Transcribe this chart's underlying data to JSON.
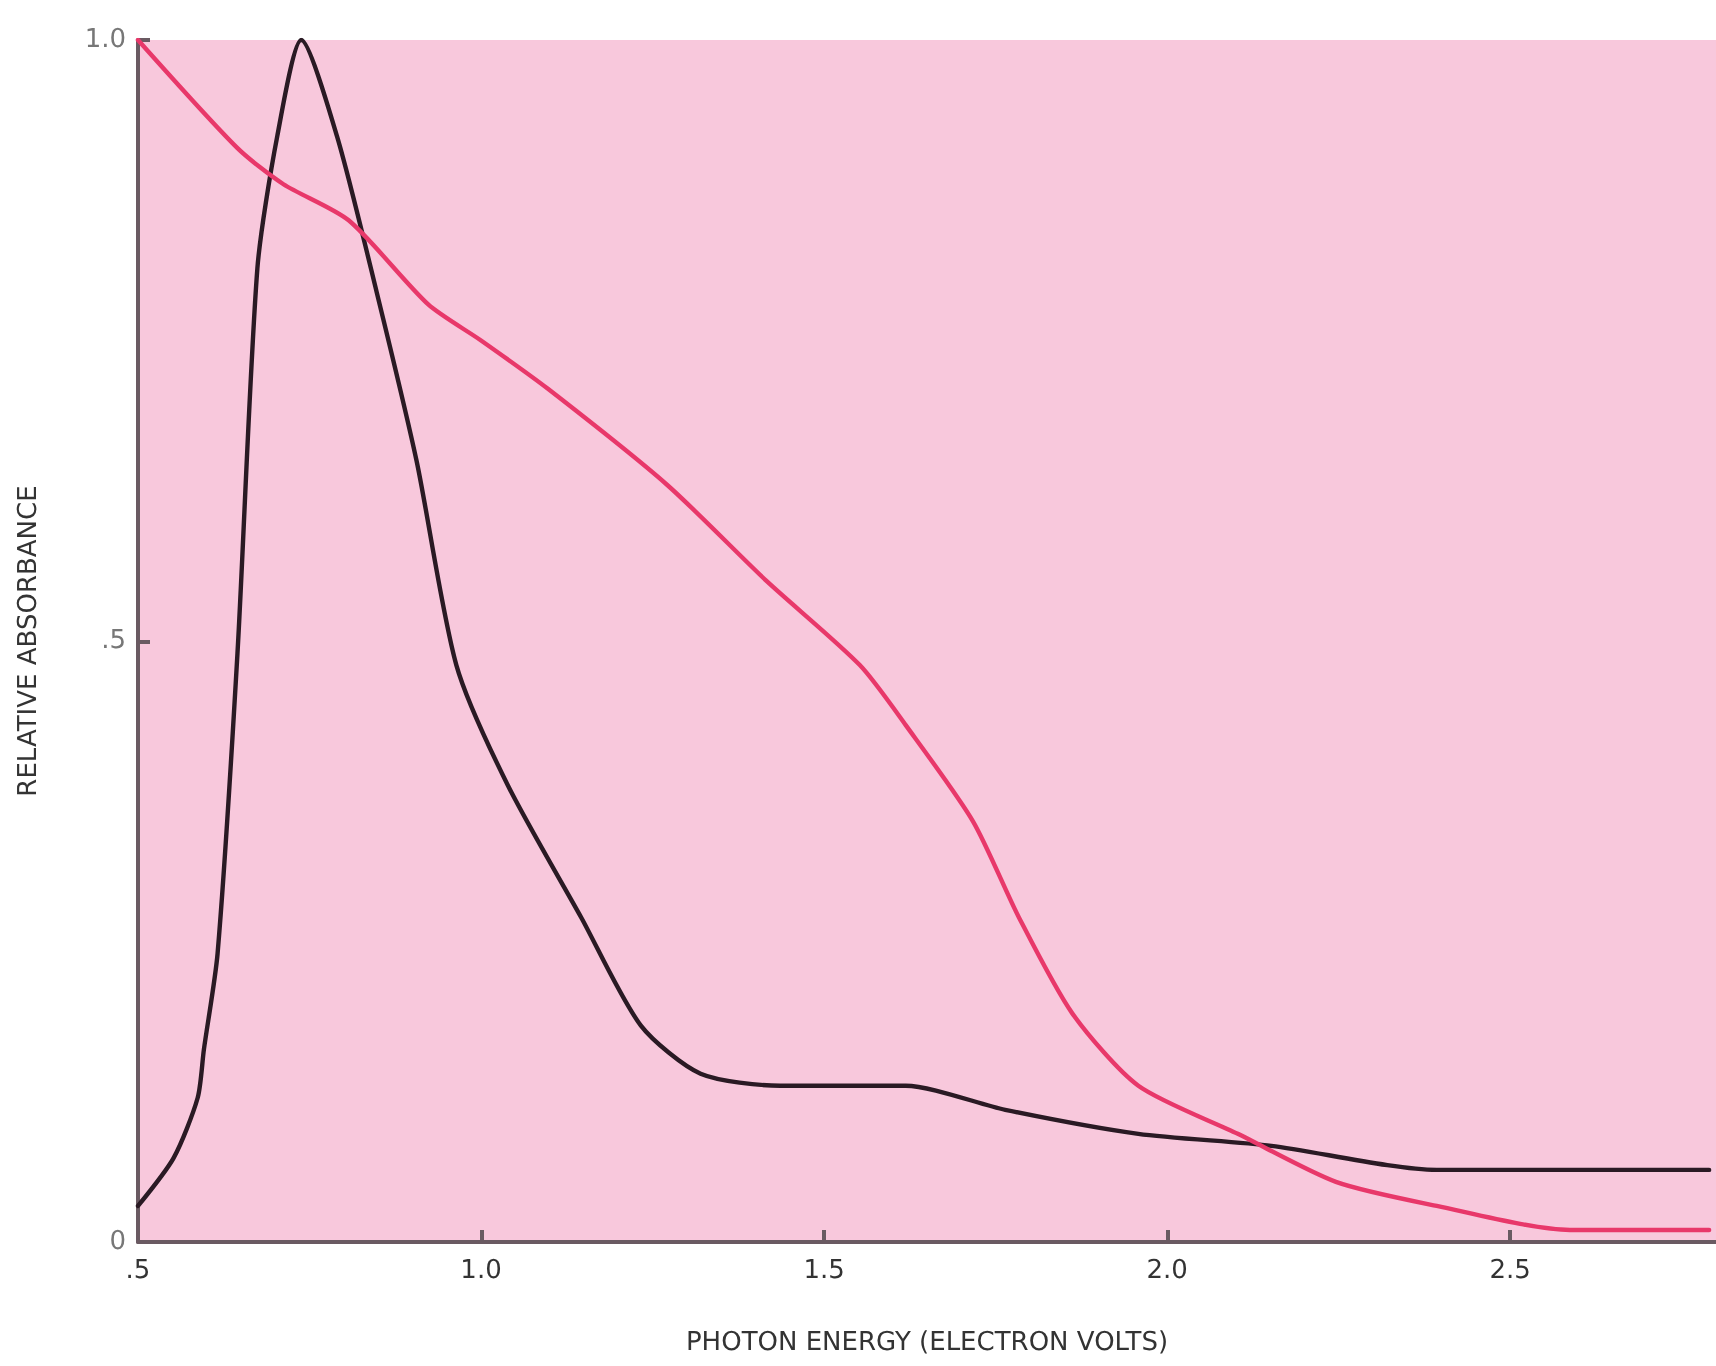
{
  "chart_data": {
    "type": "line",
    "xlabel": "PHOTON ENERGY (ELECTRON VOLTS)",
    "ylabel": "RELATIVE ABSORBANCE",
    "xlim": [
      0.5,
      2.8
    ],
    "xticks": [
      {
        "value": 0.5,
        "label": ".5"
      },
      {
        "value": 1.0,
        "label": "1.0"
      },
      {
        "value": 1.5,
        "label": "1.5"
      },
      {
        "value": 2.0,
        "label": "2.0"
      },
      {
        "value": 2.5,
        "label": "2.5"
      }
    ],
    "ylim": [
      0,
      1
    ],
    "yticks": [
      {
        "value": 0,
        "label": "0"
      },
      {
        "value": 0.5,
        "label": ".5"
      },
      {
        "value": 1,
        "label": "1.0"
      }
    ],
    "grid": false,
    "marker": "none",
    "line_style": "solid",
    "series": [
      {
        "color": "#2a1a24",
        "x": [
          0.5,
          0.552,
          0.587,
          0.596,
          0.616,
          0.645,
          0.674,
          0.703,
          0.738,
          0.79,
          0.848,
          0.906,
          0.964,
          1.039,
          1.146,
          1.233,
          1.32,
          1.436,
          1.552,
          1.619,
          1.764,
          1.958,
          2.152,
          2.393,
          2.587,
          2.79
        ],
        "values": [
          0.03,
          0.07,
          0.12,
          0.16,
          0.24,
          0.49,
          0.81,
          0.92,
          1.0,
          0.92,
          0.79,
          0.65,
          0.48,
          0.38,
          0.27,
          0.18,
          0.14,
          0.13,
          0.13,
          0.13,
          0.11,
          0.09,
          0.08,
          0.06,
          0.06,
          0.06
        ]
      },
      {
        "color": "#e8386a",
        "x": [
          0.5,
          0.645,
          0.712,
          0.807,
          0.923,
          1.0,
          1.097,
          1.271,
          1.416,
          1.552,
          1.619,
          1.717,
          1.784,
          1.862,
          1.958,
          2.103,
          2.246,
          2.393,
          2.587,
          2.79
        ],
        "values": [
          1.0,
          0.91,
          0.88,
          0.85,
          0.78,
          0.75,
          0.71,
          0.63,
          0.55,
          0.48,
          0.43,
          0.35,
          0.27,
          0.19,
          0.13,
          0.09,
          0.05,
          0.03,
          0.01,
          0.01
        ]
      }
    ]
  }
}
